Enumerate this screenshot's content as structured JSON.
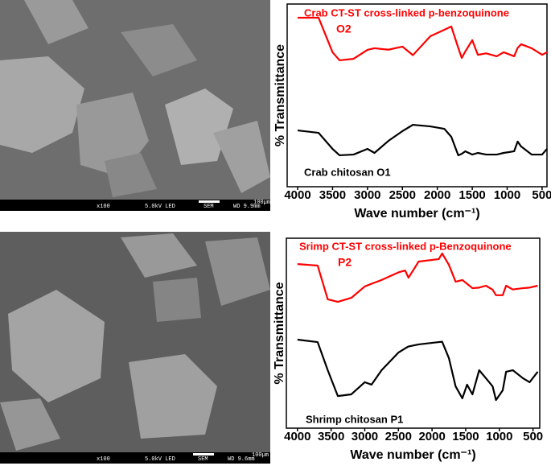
{
  "chart_data": [
    {
      "type": "line",
      "title": "Crab CT-ST cross-linked p-benzoquinone",
      "subtitle": "O2",
      "annotation": "Crab chitosan O1",
      "x_label": "Wave number (cm⁻¹)",
      "y_label": "% Transmittance",
      "x": [
        4000,
        3700,
        3500,
        3400,
        3200,
        3000,
        2900,
        2700,
        2500,
        2350,
        2100,
        1900,
        1800,
        1700,
        1650,
        1600,
        1500,
        1420,
        1300,
        1150,
        1050,
        900,
        850,
        800,
        650,
        500,
        430
      ],
      "series": [
        {
          "name": "Crab CT-ST cross-linked p-benzoquinone",
          "color": "#ff0000",
          "values": [
            92.5,
            92.5,
            73.6,
            69.2,
            70,
            74.9,
            75.8,
            75,
            76.7,
            72,
            82.4,
            85.9,
            87.7,
            76,
            70.5,
            74,
            80.2,
            72.2,
            73,
            71.4,
            73.6,
            71.4,
            76,
            78,
            75.8,
            72.2,
            73.6
          ]
        },
        {
          "name": "Crab chitosan O1",
          "color": "#000000",
          "values": [
            30.8,
            29.5,
            20.7,
            17.2,
            17.6,
            20.7,
            18.5,
            25.1,
            30.4,
            33.9,
            33,
            31.7,
            27.3,
            17.2,
            18,
            19.4,
            17.6,
            18.5,
            17.6,
            17.6,
            18.5,
            19.4,
            24.7,
            22,
            17.6,
            17.6,
            20.7
          ]
        }
      ],
      "xlim": [
        4150,
        430
      ],
      "xticks": [
        4000,
        3500,
        3000,
        2500,
        2000,
        1500,
        1000,
        500
      ],
      "ylim": [
        0,
        100
      ]
    },
    {
      "type": "line",
      "title": "Srimp CT-ST cross-linked p-Benzoquinone",
      "subtitle": "P2",
      "annotation": "Shrimp chitosan P1",
      "x_label": "Wave number (cm⁻¹)",
      "y_label": "% Transmittance",
      "x": [
        4000,
        3700,
        3550,
        3400,
        3200,
        3000,
        2900,
        2750,
        2500,
        2400,
        2350,
        2200,
        1900,
        1850,
        1750,
        1650,
        1550,
        1480,
        1400,
        1300,
        1200,
        1100,
        1050,
        950,
        900,
        800,
        650,
        550,
        430
      ],
      "series": [
        {
          "name": "Srimp CT-ST cross-linked p-Benzoquinone",
          "color": "#ff0000",
          "values": [
            86.4,
            85.6,
            67.8,
            66.5,
            68.6,
            74.6,
            76,
            78,
            82,
            83,
            79.2,
            87.7,
            89,
            92,
            86,
            77.1,
            78,
            76,
            73.7,
            74,
            75,
            72.9,
            70,
            70,
            75,
            73,
            73.7,
            74,
            75
          ]
        },
        {
          "name": "Shrimp chitosan P1",
          "color": "#000000",
          "values": [
            46.6,
            45.3,
            30.5,
            16.9,
            17.8,
            24.2,
            22.9,
            30.5,
            39.8,
            42,
            43,
            44.1,
            45.3,
            45.5,
            36.9,
            22,
            15.7,
            22.9,
            17.8,
            30.5,
            26.3,
            22,
            14.8,
            19.9,
            29.7,
            30.5,
            26.3,
            24.2,
            29.7
          ]
        }
      ],
      "xlim": [
        4165,
        400
      ],
      "xticks": [
        4000,
        3500,
        3000,
        2500,
        2000,
        1500,
        1000,
        500
      ],
      "ylim": [
        0,
        100
      ]
    }
  ],
  "sem_images": [
    {
      "magnification": "x100",
      "voltage": "5.0kV LED",
      "detector": "SEM",
      "working_distance": "WD 9.9mm",
      "scale": "100µm"
    },
    {
      "magnification": "x100",
      "voltage": "5.0kV LED",
      "detector": "SEM",
      "working_distance": "WD 9.6mm",
      "scale": "100µm"
    }
  ]
}
